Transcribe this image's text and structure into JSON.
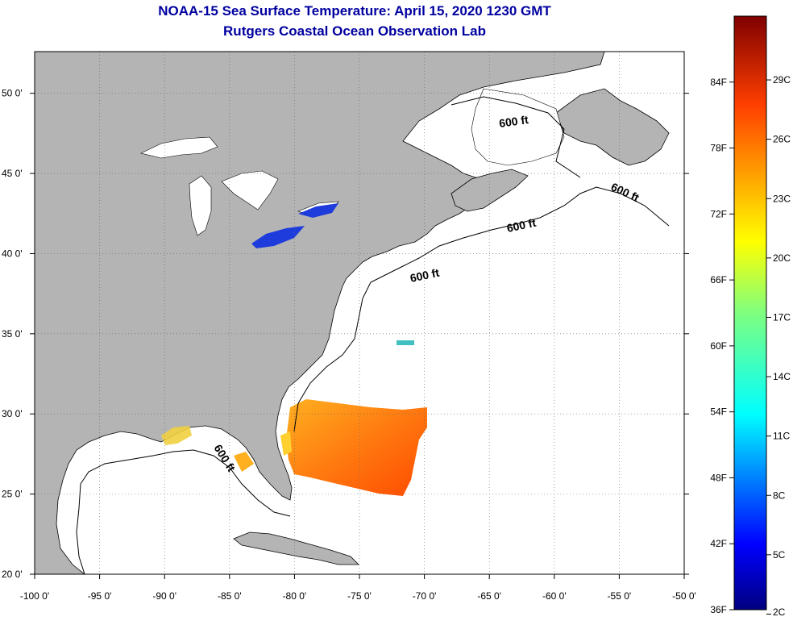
{
  "title_line1": "NOAA-15 Sea Surface Temperature:  April 15, 2020 1230 GMT",
  "title_line2": "Rutgers Coastal Ocean Observation Lab",
  "lon_labels": [
    "-100 0'",
    "-95 0'",
    "-90 0'",
    "-85 0'",
    "-80 0'",
    "-75 0'",
    "-70 0'",
    "-65 0'",
    "-60 0'",
    "-55 0'",
    "-50 0'"
  ],
  "lat_labels": [
    "20 0'",
    "25 0'",
    "30 0'",
    "35 0'",
    "40 0'",
    "45 0'",
    "50 0'"
  ],
  "contour_labels": [
    "600 ft",
    "600 ft",
    "600 ft",
    "600 ft",
    "600 ft"
  ],
  "colorbar": {
    "fahrenheit_labels": [
      "84F",
      "78F",
      "72F",
      "66F",
      "60F",
      "54F",
      "48F",
      "42F",
      "36F"
    ],
    "celsius_labels": [
      "29C",
      "26C",
      "23C",
      "20C",
      "17C",
      "14C",
      "11C",
      "8C",
      "5C",
      "2C"
    ]
  },
  "colors": {
    "land": "#b4b4b4",
    "ocean": "#ffffff",
    "frame": "#000000",
    "title": "#0000a0"
  }
}
